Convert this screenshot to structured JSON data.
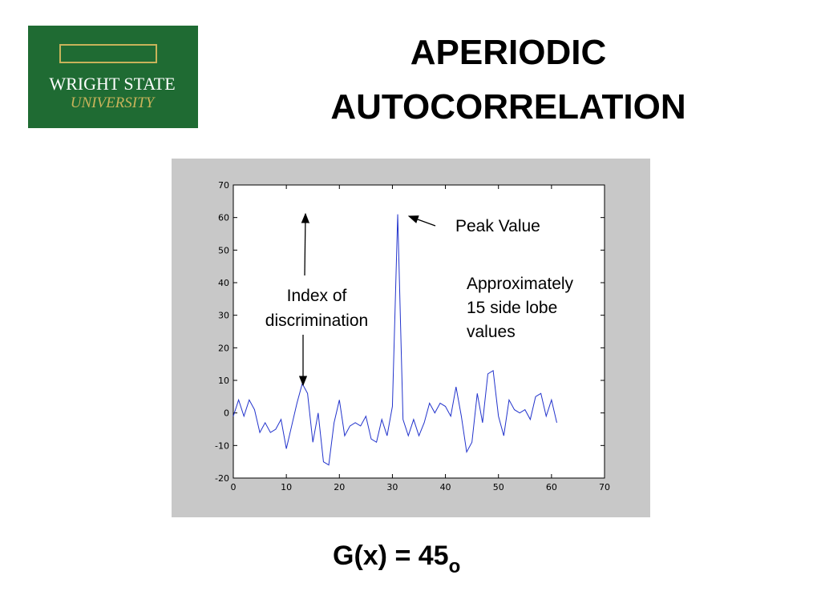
{
  "header": {
    "logo": {
      "line1": "WRIGHT STATE",
      "line2": "UNIVERSITY"
    },
    "title": [
      "APERIODIC",
      "AUTOCORRELATION"
    ]
  },
  "chart_data": {
    "type": "line",
    "color": "#2233cc",
    "x": [
      0,
      1,
      2,
      3,
      4,
      5,
      6,
      7,
      8,
      9,
      10,
      11,
      12,
      13,
      14,
      15,
      16,
      17,
      18,
      19,
      20,
      21,
      22,
      23,
      24,
      25,
      26,
      27,
      28,
      29,
      30,
      31,
      32,
      33,
      34,
      35,
      36,
      37,
      38,
      39,
      40,
      41,
      42,
      43,
      44,
      45,
      46,
      47,
      48,
      49,
      50,
      51,
      52,
      53,
      54,
      55,
      56,
      57,
      58,
      59,
      60,
      61
    ],
    "values": [
      -1,
      4,
      -1,
      4,
      1,
      -6,
      -3,
      -6,
      -5,
      -2,
      -11,
      -4,
      3,
      9,
      6,
      -9,
      0,
      -15,
      -16,
      -3,
      4,
      -7,
      -4,
      -3,
      -4,
      -1,
      -8,
      -9,
      -2,
      -7,
      2,
      61,
      -2,
      -7,
      -2,
      -7,
      -3,
      3,
      0,
      3,
      2,
      -1,
      8,
      -1,
      -12,
      -9,
      6,
      -3,
      12,
      13,
      -1,
      -7,
      4,
      1,
      0,
      1,
      -2,
      5,
      6,
      -1,
      4,
      -3
    ],
    "xlim": [
      0,
      70
    ],
    "xticks": [
      0,
      10,
      20,
      30,
      40,
      50,
      60,
      70
    ],
    "ylim": [
      -20,
      70
    ],
    "yticks": [
      -20,
      -10,
      0,
      10,
      20,
      30,
      40,
      50,
      60,
      70
    ],
    "annotations": [
      {
        "lines": [
          "Peak Value"
        ]
      },
      {
        "lines": [
          "Approximately",
          "15 side lobe",
          "values"
        ]
      },
      {
        "lines": [
          "Index of",
          "discrimination"
        ]
      }
    ]
  },
  "footer": {
    "formula": "G(x) = 45",
    "subscript": "o"
  }
}
